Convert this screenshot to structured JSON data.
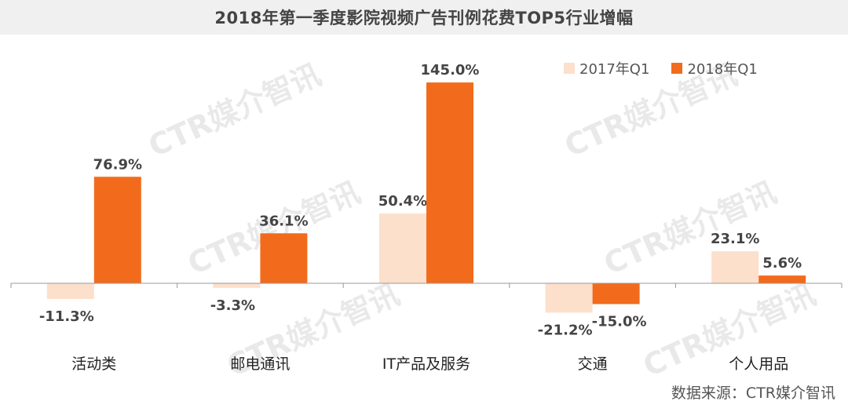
{
  "chart_data": {
    "type": "bar",
    "title": "2018年第一季度影院视频广告刊例花费TOP5行业增幅",
    "categories": [
      "活动类",
      "邮电通讯",
      "IT产品及服务",
      "交通",
      "个人用品"
    ],
    "series": [
      {
        "name": "2017年Q1",
        "values": [
          -11.3,
          -3.3,
          50.4,
          -21.2,
          23.1
        ],
        "labels": [
          "-11.3%",
          "-3.3%",
          "50.4%",
          "-21.2%",
          "23.1%"
        ],
        "color": "#fce0cc"
      },
      {
        "name": "2018年Q1",
        "values": [
          76.9,
          36.1,
          145.0,
          -15.0,
          5.6
        ],
        "labels": [
          "76.9%",
          "36.1%",
          "145.0%",
          "-15.0%",
          "5.6%"
        ],
        "color": "#f26b1c"
      }
    ],
    "legend": "top-right",
    "grid": false
  },
  "watermark": "CTR媒介智讯",
  "source": "数据来源：CTR媒介智讯",
  "colors": {
    "title_bg": "#f0f0f0",
    "axis": "#999999",
    "label": "#444444"
  }
}
